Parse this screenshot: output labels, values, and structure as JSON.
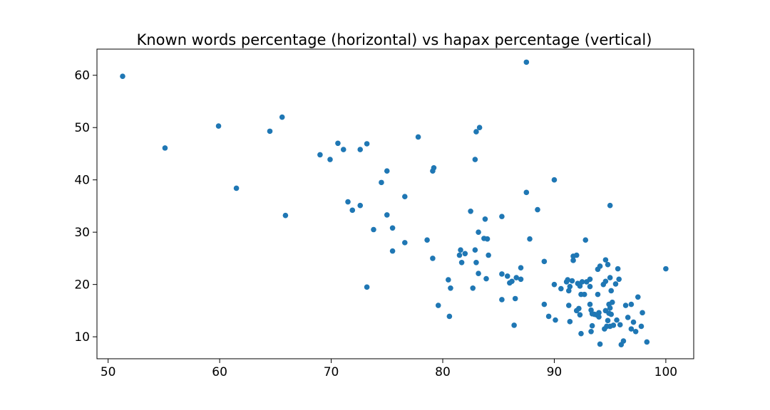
{
  "chart_data": {
    "type": "scatter",
    "title": "Known words percentage (horizontal) vs hapax percentage (vertical)",
    "xlabel": "",
    "ylabel": "",
    "xlim": [
      49,
      102.5
    ],
    "ylim": [
      5.8,
      65
    ],
    "xticks": [
      50,
      60,
      70,
      80,
      90,
      100
    ],
    "yticks": [
      10,
      20,
      30,
      40,
      50,
      60
    ],
    "grid": false,
    "legend": "none",
    "marker_color": "#1f77b4",
    "series": [
      {
        "points": [
          [
            51.3,
            59.8
          ],
          [
            55.1,
            46.1
          ],
          [
            59.9,
            50.3
          ],
          [
            61.5,
            38.4
          ],
          [
            64.5,
            49.3
          ],
          [
            65.6,
            52.0
          ],
          [
            65.9,
            33.2
          ],
          [
            69.0,
            44.8
          ],
          [
            69.9,
            43.9
          ],
          [
            70.6,
            47.0
          ],
          [
            71.1,
            45.8
          ],
          [
            71.5,
            35.8
          ],
          [
            71.9,
            34.2
          ],
          [
            72.6,
            35.1
          ],
          [
            72.6,
            45.8
          ],
          [
            73.2,
            46.9
          ],
          [
            73.2,
            19.5
          ],
          [
            73.8,
            30.5
          ],
          [
            74.5,
            39.5
          ],
          [
            75.0,
            41.7
          ],
          [
            75.0,
            33.3
          ],
          [
            75.5,
            26.4
          ],
          [
            75.5,
            30.8
          ],
          [
            76.6,
            36.8
          ],
          [
            76.6,
            28.0
          ],
          [
            77.8,
            48.2
          ],
          [
            78.6,
            28.5
          ],
          [
            79.1,
            41.7
          ],
          [
            79.2,
            42.3
          ],
          [
            79.1,
            25.0
          ],
          [
            79.6,
            16.0
          ],
          [
            80.5,
            20.9
          ],
          [
            80.6,
            13.9
          ],
          [
            80.7,
            19.3
          ],
          [
            81.5,
            25.6
          ],
          [
            81.6,
            26.6
          ],
          [
            81.7,
            24.2
          ],
          [
            82.0,
            25.9
          ],
          [
            82.5,
            34.0
          ],
          [
            82.7,
            19.3
          ],
          [
            82.9,
            43.9
          ],
          [
            82.9,
            26.6
          ],
          [
            83.0,
            49.2
          ],
          [
            83.0,
            24.2
          ],
          [
            83.2,
            30.0
          ],
          [
            83.2,
            22.1
          ],
          [
            83.3,
            50.0
          ],
          [
            83.7,
            28.8
          ],
          [
            83.8,
            32.5
          ],
          [
            83.9,
            21.1
          ],
          [
            84.0,
            28.7
          ],
          [
            84.1,
            25.6
          ],
          [
            85.3,
            22.0
          ],
          [
            85.3,
            33.0
          ],
          [
            85.3,
            17.1
          ],
          [
            85.8,
            21.6
          ],
          [
            86.0,
            20.3
          ],
          [
            86.2,
            20.6
          ],
          [
            86.4,
            12.2
          ],
          [
            86.5,
            17.3
          ],
          [
            86.6,
            21.3
          ],
          [
            87.0,
            21.0
          ],
          [
            87.0,
            23.2
          ],
          [
            87.5,
            62.5
          ],
          [
            87.5,
            37.6
          ],
          [
            87.8,
            28.7
          ],
          [
            88.5,
            34.3
          ],
          [
            89.1,
            24.4
          ],
          [
            89.1,
            16.2
          ],
          [
            89.5,
            13.9
          ],
          [
            90.0,
            40.0
          ],
          [
            90.0,
            20.0
          ],
          [
            90.1,
            13.2
          ],
          [
            90.6,
            19.2
          ],
          [
            91.1,
            20.5
          ],
          [
            91.2,
            20.9
          ],
          [
            91.3,
            18.8
          ],
          [
            91.3,
            16.0
          ],
          [
            91.4,
            19.6
          ],
          [
            91.4,
            12.9
          ],
          [
            91.6,
            20.7
          ],
          [
            91.7,
            24.6
          ],
          [
            91.7,
            25.4
          ],
          [
            92.0,
            25.6
          ],
          [
            92.0,
            15.0
          ],
          [
            92.1,
            20.2
          ],
          [
            92.2,
            15.4
          ],
          [
            92.3,
            19.7
          ],
          [
            92.3,
            14.2
          ],
          [
            92.4,
            18.1
          ],
          [
            92.4,
            10.6
          ],
          [
            92.5,
            20.5
          ],
          [
            92.7,
            18.1
          ],
          [
            92.8,
            28.5
          ],
          [
            92.9,
            20.5
          ],
          [
            93.2,
            21.0
          ],
          [
            93.2,
            19.6
          ],
          [
            93.2,
            16.2
          ],
          [
            93.3,
            15.1
          ],
          [
            93.3,
            11.0
          ],
          [
            93.4,
            14.4
          ],
          [
            93.4,
            12.1
          ],
          [
            93.6,
            14.3
          ],
          [
            93.8,
            14.2
          ],
          [
            93.9,
            22.9
          ],
          [
            93.9,
            18.1
          ],
          [
            94.0,
            14.6
          ],
          [
            94.0,
            13.8
          ],
          [
            94.1,
            23.5
          ],
          [
            94.1,
            8.6
          ],
          [
            94.4,
            20.0
          ],
          [
            94.5,
            11.5
          ],
          [
            94.6,
            24.7
          ],
          [
            94.6,
            20.6
          ],
          [
            94.6,
            15.0
          ],
          [
            94.7,
            12.0
          ],
          [
            94.8,
            23.8
          ],
          [
            94.8,
            13.1
          ],
          [
            94.9,
            16.2
          ],
          [
            94.9,
            14.5
          ],
          [
            95.0,
            35.1
          ],
          [
            95.0,
            21.3
          ],
          [
            95.0,
            15.5
          ],
          [
            95.0,
            12.0
          ],
          [
            95.1,
            14.3
          ],
          [
            95.1,
            18.8
          ],
          [
            95.2,
            16.6
          ],
          [
            95.3,
            12.2
          ],
          [
            95.5,
            20.1
          ],
          [
            95.6,
            13.2
          ],
          [
            95.7,
            23.0
          ],
          [
            95.8,
            21.0
          ],
          [
            95.9,
            12.3
          ],
          [
            96.0,
            8.5
          ],
          [
            96.2,
            9.2
          ],
          [
            96.4,
            16.0
          ],
          [
            96.6,
            13.7
          ],
          [
            96.9,
            16.2
          ],
          [
            96.9,
            11.5
          ],
          [
            97.1,
            12.8
          ],
          [
            97.3,
            11.0
          ],
          [
            97.5,
            17.6
          ],
          [
            97.8,
            12.0
          ],
          [
            97.9,
            14.6
          ],
          [
            98.3,
            9.0
          ],
          [
            100.0,
            23.0
          ]
        ]
      }
    ]
  }
}
